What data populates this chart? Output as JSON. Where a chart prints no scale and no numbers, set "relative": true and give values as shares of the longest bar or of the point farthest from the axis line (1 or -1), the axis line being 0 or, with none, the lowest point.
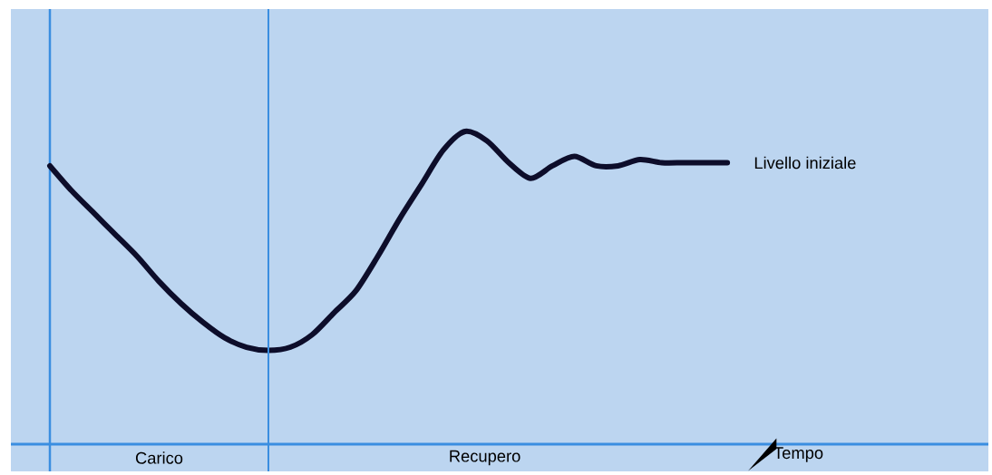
{
  "chart_data": {
    "type": "line",
    "relative": true,
    "xlabel": "Tempo",
    "categories": [
      null,
      null,
      null,
      null,
      null,
      null,
      null,
      null,
      null,
      null,
      null,
      null,
      null,
      null,
      null,
      null,
      null,
      null,
      null,
      null,
      null,
      null,
      null,
      null,
      null,
      null,
      null,
      null,
      null,
      null,
      null,
      null,
      null,
      null,
      null,
      null,
      null,
      null,
      null,
      null,
      null,
      null,
      null,
      null
    ],
    "series": [
      {
        "color": "#0d0d2a",
        "values": [
          0.89,
          0.81,
          0.74,
          0.67,
          0.6,
          0.52,
          0.45,
          0.39,
          0.34,
          0.31,
          0.3,
          0.31,
          0.35,
          0.42,
          0.49,
          0.6,
          0.72,
          0.83,
          0.94,
          1.0,
          0.97,
          0.9,
          0.85,
          0.89,
          0.92,
          0.89,
          0.89,
          0.91,
          0.9,
          0.9,
          0.9,
          0.9,
          null,
          null,
          null,
          null,
          null,
          null,
          null,
          null,
          null,
          null,
          null,
          null
        ]
      }
    ],
    "line_style": "solid",
    "annotations": [
      "Carico",
      "Recupero",
      "Livello iniziale"
    ]
  }
}
